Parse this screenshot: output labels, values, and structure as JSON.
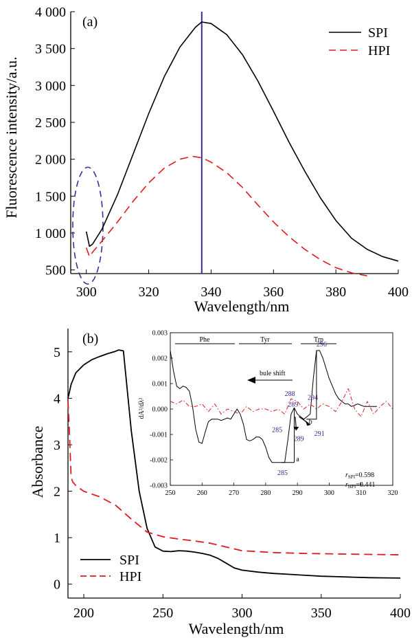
{
  "chart_data": [
    {
      "panel_label": "(a)",
      "type": "line",
      "xlabel": "Wavelength/nm",
      "ylabel": "Fluorescence intensity/a.u.",
      "xlim": [
        295,
        400
      ],
      "ylim": [
        450,
        4000
      ],
      "xticks": [
        "300",
        "320",
        "340",
        "360",
        "380",
        "400"
      ],
      "yticks": [
        "500",
        "1 000",
        "1 500",
        "2 000",
        "2 500",
        "3 000",
        "3 500",
        "4 000"
      ],
      "legend": {
        "position": "top-right"
      },
      "vertical_line_x": 337,
      "series": [
        {
          "name": "SPI",
          "color": "#000000",
          "style": "solid",
          "x": [
            300,
            301,
            302,
            305,
            310,
            315,
            320,
            325,
            330,
            335,
            337,
            340,
            345,
            350,
            355,
            360,
            365,
            370,
            375,
            380,
            385,
            390,
            395,
            400
          ],
          "y": [
            1020,
            820,
            850,
            1050,
            1520,
            2070,
            2620,
            3120,
            3520,
            3790,
            3860,
            3840,
            3690,
            3420,
            3060,
            2650,
            2230,
            1840,
            1480,
            1170,
            930,
            780,
            680,
            620
          ]
        },
        {
          "name": "HPI",
          "color": "#e0191f",
          "style": "dashed",
          "x": [
            300,
            301,
            302,
            305,
            310,
            315,
            320,
            325,
            330,
            334,
            337,
            340,
            345,
            350,
            355,
            360,
            365,
            370,
            375,
            380,
            385,
            390
          ],
          "y": [
            800,
            680,
            740,
            890,
            1150,
            1430,
            1680,
            1880,
            2000,
            2040,
            2020,
            1960,
            1820,
            1620,
            1380,
            1150,
            950,
            780,
            640,
            530,
            460,
            420
          ]
        }
      ]
    },
    {
      "panel_label": "(b)",
      "type": "line",
      "xlabel": "Wavelength/nm",
      "ylabel": "Absorbance",
      "xlim": [
        190,
        400
      ],
      "ylim": [
        -0.3,
        5.5
      ],
      "xticks": [
        "200",
        "250",
        "300",
        "350",
        "400"
      ],
      "yticks": [
        "0",
        "1",
        "2",
        "3",
        "4",
        "5"
      ],
      "legend": {
        "position": "bottom-left"
      },
      "series": [
        {
          "name": "SPI",
          "color": "#000000",
          "style": "solid",
          "x": [
            190,
            192,
            195,
            200,
            205,
            210,
            215,
            220,
            222,
            225,
            230,
            235,
            240,
            245,
            250,
            255,
            260,
            265,
            270,
            275,
            280,
            285,
            290,
            295,
            300,
            310,
            320,
            330,
            340,
            350,
            360,
            370,
            380,
            390,
            400
          ],
          "y": [
            4.0,
            4.3,
            4.55,
            4.72,
            4.83,
            4.9,
            4.96,
            5.01,
            5.04,
            5.02,
            3.3,
            2.0,
            1.2,
            0.8,
            0.71,
            0.7,
            0.72,
            0.71,
            0.69,
            0.66,
            0.62,
            0.55,
            0.45,
            0.35,
            0.3,
            0.26,
            0.23,
            0.21,
            0.19,
            0.17,
            0.16,
            0.15,
            0.14,
            0.135,
            0.13
          ]
        },
        {
          "name": "HPI",
          "color": "#e0191f",
          "style": "dashed",
          "x": [
            190,
            191,
            192,
            193,
            195,
            200,
            210,
            220,
            230,
            240,
            250,
            260,
            270,
            280,
            290,
            300,
            320,
            340,
            360,
            380,
            400
          ],
          "y": [
            3.95,
            3.2,
            2.3,
            2.2,
            2.12,
            2.0,
            1.88,
            1.7,
            1.4,
            1.12,
            1.02,
            0.97,
            0.93,
            0.88,
            0.8,
            0.72,
            0.68,
            0.66,
            0.65,
            0.64,
            0.63
          ]
        }
      ]
    },
    {
      "panel_label": "inset",
      "type": "line",
      "xlabel": "",
      "ylabel": "dA²/dλ²",
      "xlim": [
        250,
        320
      ],
      "ylim": [
        -0.003,
        0.003
      ],
      "xticks": [
        "250",
        "260",
        "270",
        "280",
        "290",
        "300",
        "310",
        "320"
      ],
      "yticks": [
        "-0.003",
        "-0.002",
        "-0.001",
        "0.000",
        "0.001",
        "0.002",
        "0.003"
      ],
      "regions": [
        "Phe",
        "Tyr",
        "Trp"
      ],
      "arrow_label": "bule shift",
      "peak_labels": [
        "296",
        "294",
        "288",
        "289",
        "285",
        "289",
        "291",
        "285"
      ],
      "point_labels": [
        "a",
        "b"
      ],
      "correlations": {
        "prefix": "r",
        "spi_sub": "SPI",
        "spi_val": "=0.598",
        "hpi_sub": "HPI",
        "hpi_val": "=0.441"
      },
      "series": [
        {
          "name": "SPI",
          "color": "#000000",
          "style": "solid",
          "x": [
            250,
            251,
            252,
            253,
            254,
            255,
            256,
            257,
            258,
            259,
            260,
            261,
            262,
            263,
            264,
            265,
            266,
            267,
            268,
            269,
            270,
            271,
            272,
            273,
            274,
            275,
            276,
            277,
            278,
            279,
            280,
            281,
            282,
            283,
            284,
            285,
            286,
            287,
            288,
            289,
            290,
            291,
            292,
            293,
            294,
            295,
            296,
            297,
            298,
            299,
            300,
            301,
            302,
            303,
            304,
            305,
            306,
            307,
            308,
            309,
            310,
            311,
            312,
            313,
            314,
            315
          ],
          "y": [
            0.0023,
            0.0015,
            0.0009,
            0.0008,
            0.0009,
            0.00085,
            0.0007,
            0.0001,
            -0.0008,
            -0.0013,
            -0.00135,
            -0.0009,
            -0.0005,
            -0.0004,
            -0.0004,
            -0.0004,
            -0.00045,
            -0.0004,
            -0.00035,
            -0.0004,
            -0.0002,
            0.0,
            -0.0002,
            -0.0006,
            -0.0012,
            -0.00125,
            -0.0012,
            -0.0011,
            -0.0011,
            -0.0012,
            -0.0015,
            -0.0019,
            -0.0021,
            -0.0021,
            -0.0021,
            -0.0021,
            -0.0021,
            -0.0012,
            -0.0002,
            5e-05,
            -0.0002,
            -0.0003,
            -0.0004,
            -0.0003,
            -0.0002,
            0.0012,
            0.0023,
            0.0023,
            0.002,
            0.0016,
            0.0012,
            0.0009,
            0.0006,
            0.0004,
            0.0003,
            0.0002,
            0.0002,
            0.0001,
            0.00015,
            0.0002,
            0.00015,
            0.0001,
            0.0001,
            0.0001,
            0.0001,
            0.0001
          ]
        },
        {
          "name": "HPI",
          "color": "#e0191f",
          "style": "dashdot",
          "x": [
            250,
            252,
            254,
            256,
            258,
            260,
            262,
            264,
            266,
            268,
            270,
            272,
            274,
            276,
            278,
            280,
            282,
            284,
            286,
            288,
            290,
            292,
            294,
            296,
            298,
            300,
            302,
            304,
            306,
            308,
            310,
            312,
            314,
            316,
            318,
            320
          ],
          "y": [
            0.0003,
            0.0002,
            0.00035,
            0.0001,
            0.0001,
            0.0002,
            -0.0001,
            0.0002,
            -0.0002,
            0.0,
            -0.0001,
            -0.0002,
            0.0001,
            -0.0001,
            0.0,
            0.0,
            -0.0001,
            0.0,
            -0.0002,
            0.0004,
            0.0003,
            0.0,
            0.0002,
            0.0,
            0.0002,
            0.0001,
            -0.0001,
            0.0003,
            0.0008,
            0.0,
            -0.0003,
            0.0003,
            -0.0002,
            0.0001,
            0.0003,
            0.0
          ]
        }
      ]
    }
  ],
  "colors": {
    "axis": "#000000",
    "spi": "#000000",
    "hpi": "#e0191f",
    "vline": "#3b2a9c",
    "ellipse": "#3b2a9c",
    "peak": "#3b1a8c"
  }
}
